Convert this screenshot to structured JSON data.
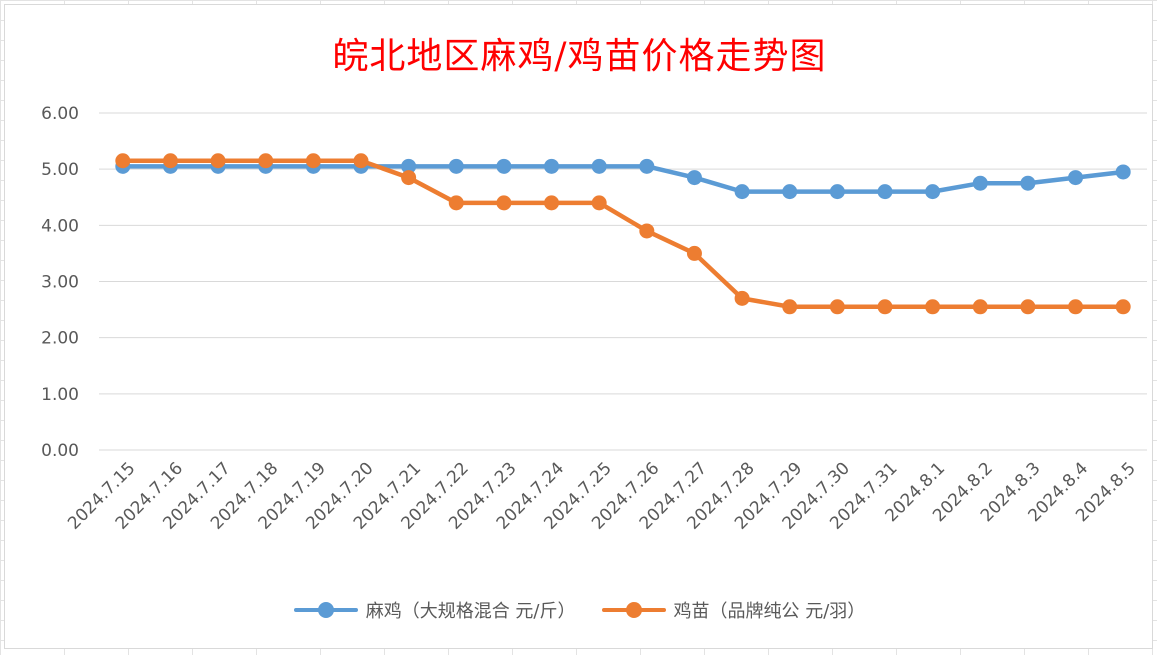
{
  "chart_data": {
    "type": "line",
    "title": "皖北地区麻鸡/鸡苗价格走势图",
    "categories": [
      "2024.7.15",
      "2024.7.16",
      "2024.7.17",
      "2024.7.18",
      "2024.7.19",
      "2024.7.20",
      "2024.7.21",
      "2024.7.22",
      "2024.7.23",
      "2024.7.24",
      "2024.7.25",
      "2024.7.26",
      "2024.7.27",
      "2024.7.28",
      "2024.7.29",
      "2024.7.30",
      "2024.7.31",
      "2024.8.1",
      "2024.8.2",
      "2024.8.3",
      "2024.8.4",
      "2024.8.5"
    ],
    "y_ticks": [
      "0.00",
      "1.00",
      "2.00",
      "3.00",
      "4.00",
      "5.00",
      "6.00"
    ],
    "ylim": [
      0,
      6
    ],
    "grid": true,
    "legend_position": "bottom",
    "series": [
      {
        "name": "麻鸡（大规格混合 元/斤）",
        "color": "#5b9bd5",
        "values": [
          5.05,
          5.05,
          5.05,
          5.05,
          5.05,
          5.05,
          5.05,
          5.05,
          5.05,
          5.05,
          5.05,
          5.05,
          4.85,
          4.6,
          4.6,
          4.6,
          4.6,
          4.6,
          4.75,
          4.75,
          4.85,
          4.95
        ]
      },
      {
        "name": "鸡苗（品牌纯公 元/羽）",
        "color": "#ed7d31",
        "values": [
          5.15,
          5.15,
          5.15,
          5.15,
          5.15,
          5.15,
          4.85,
          4.4,
          4.4,
          4.4,
          4.4,
          3.9,
          3.5,
          2.7,
          2.55,
          2.55,
          2.55,
          2.55,
          2.55,
          2.55,
          2.55,
          2.55
        ]
      }
    ]
  }
}
